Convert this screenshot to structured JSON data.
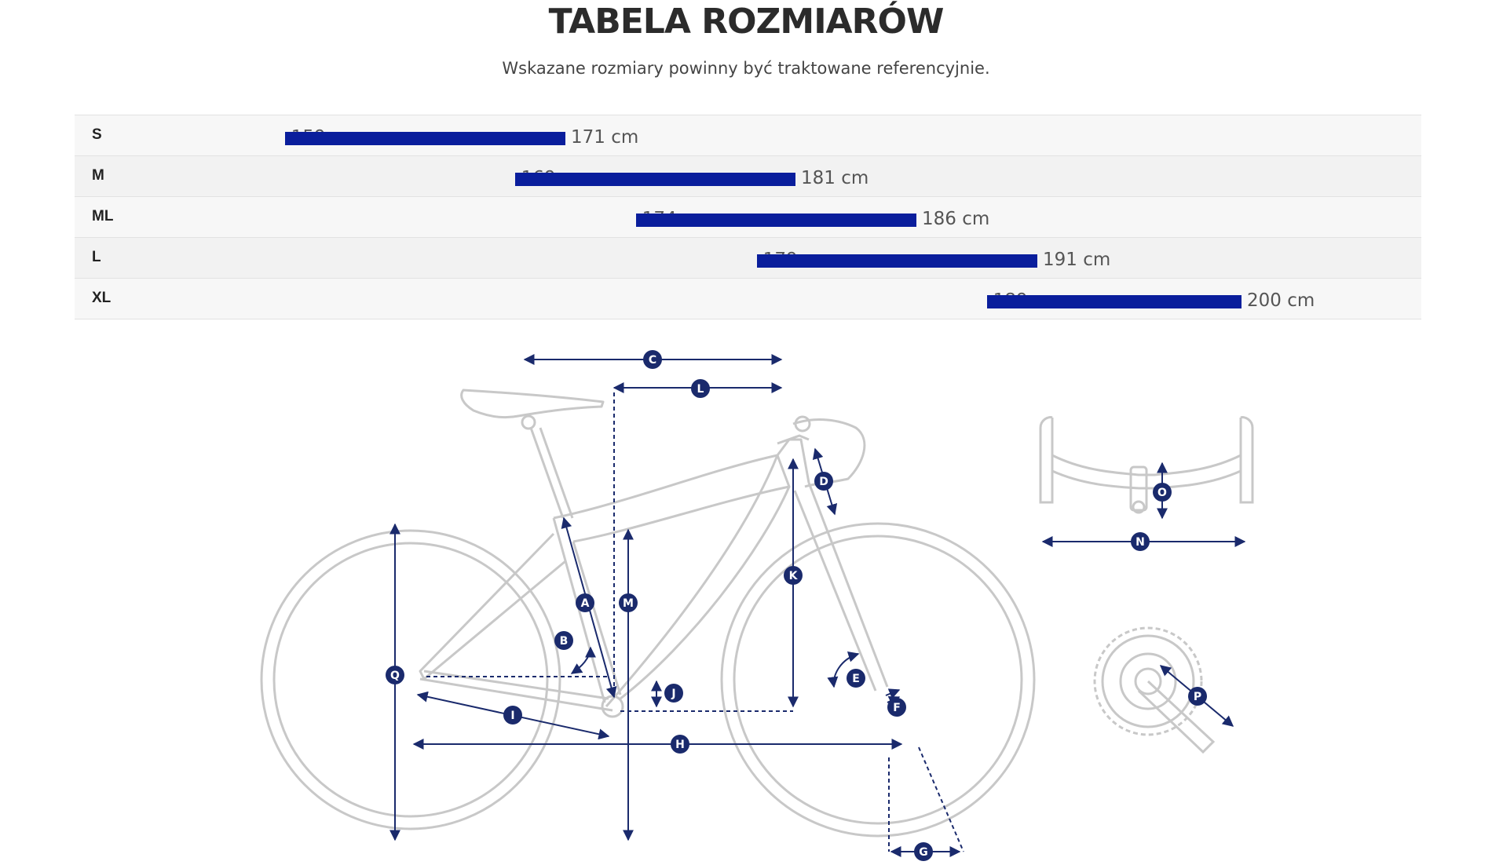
{
  "header": {
    "title": "TABELA ROZMIARÓW",
    "subtitle": "Wskazane rozmiary powinny być traktowane referencyjnie."
  },
  "size_chart": {
    "unit": "cm",
    "accent_color": "#0a1e9c",
    "rows": [
      {
        "size": "S",
        "min_label": "159 cm",
        "max_label": "171 cm",
        "min": 159,
        "max": 171
      },
      {
        "size": "M",
        "min_label": "169 cm",
        "max_label": "181 cm",
        "min": 169,
        "max": 181
      },
      {
        "size": "ML",
        "min_label": "174 cm",
        "max_label": "186 cm",
        "min": 174,
        "max": 186
      },
      {
        "size": "L",
        "min_label": "179 cm",
        "max_label": "191 cm",
        "min": 179,
        "max": 191
      },
      {
        "size": "XL",
        "min_label": "189 cm",
        "max_label": "200 cm",
        "min": 189,
        "max": 200
      }
    ]
  },
  "diagram": {
    "labels": {
      "A": "A",
      "B": "B",
      "C": "C",
      "D": "D",
      "E": "E",
      "F": "F",
      "G": "G",
      "H": "H",
      "I": "I",
      "J": "J",
      "K": "K",
      "L": "L",
      "M": "M",
      "N": "N",
      "O": "O",
      "P": "P",
      "Q": "Q"
    },
    "icons": [
      "bike-geometry-icon",
      "handlebar-icon",
      "crankset-icon"
    ],
    "line_color": "#c8c8c8",
    "marker_color": "#1a2a6c"
  }
}
